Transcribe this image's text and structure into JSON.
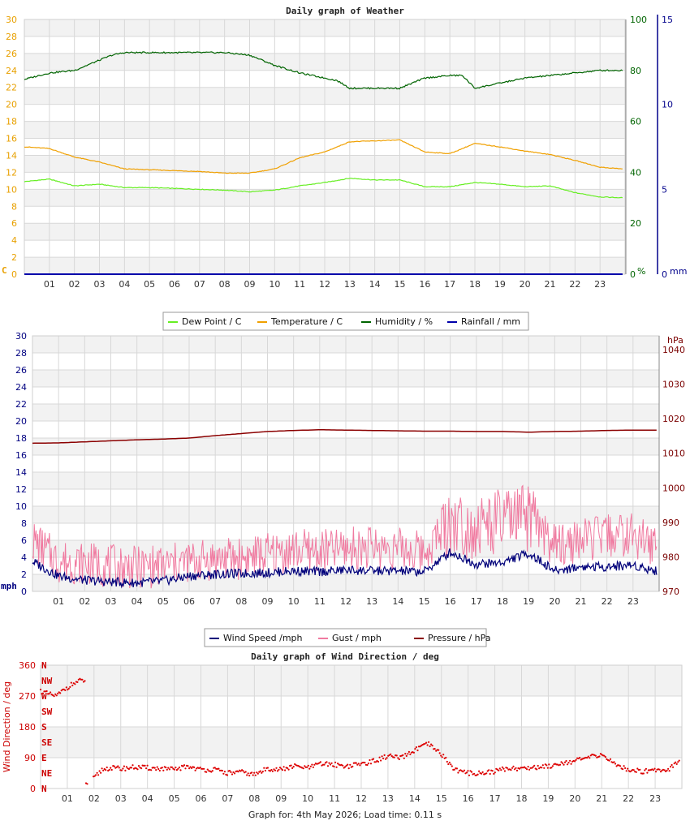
{
  "footer": {
    "text": "Graph for: 4th May 2026; Load time: 0.11 s"
  },
  "chart_data": [
    {
      "type": "line",
      "title": "Daily graph of Weather",
      "x_ticks": [
        "01",
        "02",
        "03",
        "04",
        "05",
        "06",
        "07",
        "08",
        "09",
        "10",
        "11",
        "12",
        "13",
        "14",
        "15",
        "16",
        "17",
        "18",
        "19",
        "20",
        "21",
        "22",
        "23"
      ],
      "left_axis": {
        "label": "C",
        "range": [
          0,
          30
        ],
        "ticks": [
          "0",
          "2",
          "4",
          "6",
          "8",
          "10",
          "12",
          "14",
          "16",
          "18",
          "20",
          "22",
          "24",
          "26",
          "28",
          "30"
        ],
        "color": "#e8a000"
      },
      "right_axis_1": {
        "label": "%",
        "range": [
          0,
          100
        ],
        "ticks": [
          "0",
          "20",
          "40",
          "60",
          "80",
          "100"
        ],
        "color": "#006400"
      },
      "right_axis_2": {
        "label": "mm",
        "range": [
          0,
          15
        ],
        "ticks": [
          "0",
          "5",
          "10",
          "15"
        ],
        "color": "#00008b"
      },
      "legend": [
        {
          "name": "Dew Point / C",
          "color": "#66ee22"
        },
        {
          "name": "Temperature / C",
          "color": "#f0a000"
        },
        {
          "name": "Humidity / %",
          "color": "#006400"
        },
        {
          "name": "Rainfall / mm",
          "color": "#0000aa"
        }
      ],
      "series": [
        {
          "name": "Dew Point / C",
          "axis": "left",
          "color": "#66ee22",
          "x": [
            0,
            1,
            2,
            3,
            4,
            5,
            6,
            7,
            8,
            9,
            10,
            11,
            12,
            13,
            14,
            15,
            16,
            17,
            18,
            19,
            20,
            21,
            22,
            23,
            23.9
          ],
          "y": [
            10.9,
            11.2,
            10.4,
            10.6,
            10.2,
            10.2,
            10.1,
            10.0,
            9.9,
            9.7,
            9.9,
            10.4,
            10.8,
            11.3,
            11.1,
            11.1,
            10.3,
            10.3,
            10.8,
            10.6,
            10.3,
            10.4,
            9.6,
            9.1,
            9.0
          ]
        },
        {
          "name": "Temperature / C",
          "axis": "left",
          "color": "#f0a000",
          "x": [
            0,
            1,
            2,
            3,
            4,
            5,
            6,
            7,
            8,
            9,
            10,
            11,
            12,
            13,
            14,
            15,
            16,
            17,
            18,
            19,
            20,
            21,
            22,
            23,
            23.9
          ],
          "y": [
            15.0,
            14.8,
            13.8,
            13.2,
            12.4,
            12.3,
            12.2,
            12.1,
            11.9,
            11.9,
            12.4,
            13.7,
            14.4,
            15.6,
            15.7,
            15.8,
            14.4,
            14.2,
            15.4,
            15.0,
            14.5,
            14.1,
            13.4,
            12.6,
            12.4
          ]
        },
        {
          "name": "Humidity / %",
          "axis": "right_1",
          "color": "#006400",
          "x": [
            0,
            1,
            2,
            3,
            3.5,
            4,
            5,
            6,
            7,
            8,
            9,
            10,
            11,
            12,
            12.5,
            13,
            14,
            15,
            16,
            17,
            17.5,
            18,
            19,
            20,
            21,
            22,
            23,
            23.9
          ],
          "y": [
            76.5,
            79,
            80,
            84,
            86,
            87,
            87,
            87,
            87,
            87,
            86,
            82,
            79,
            77,
            76,
            73,
            73,
            73,
            77,
            78,
            78,
            73,
            75,
            77,
            78,
            79,
            80,
            80
          ]
        },
        {
          "name": "Rainfall / mm",
          "axis": "right_2",
          "color": "#0000aa",
          "x": [
            0,
            23.9
          ],
          "y": [
            0,
            0
          ]
        }
      ]
    },
    {
      "type": "line",
      "title": "",
      "x_ticks": [
        "01",
        "02",
        "03",
        "04",
        "05",
        "06",
        "07",
        "08",
        "09",
        "10",
        "11",
        "12",
        "13",
        "14",
        "15",
        "16",
        "17",
        "18",
        "19",
        "20",
        "21",
        "22",
        "23"
      ],
      "left_axis": {
        "label": "mph",
        "range": [
          0,
          30
        ],
        "ticks": [
          "0",
          "2",
          "4",
          "6",
          "8",
          "10",
          "12",
          "14",
          "16",
          "18",
          "20",
          "22",
          "24",
          "26",
          "28",
          "30"
        ],
        "color": "#000080"
      },
      "right_axis": {
        "label": "hPa",
        "range": [
          970,
          1044
        ],
        "ticks": [
          "970",
          "980",
          "990",
          "1000",
          "1010",
          "1020",
          "1030",
          "1040"
        ],
        "color": "#7a0000"
      },
      "legend": [
        {
          "name": "Wind Speed /mph",
          "color": "#00007a"
        },
        {
          "name": "Gust / mph",
          "color": "#f07aa0"
        },
        {
          "name": "Pressure / hPa",
          "color": "#8b0000"
        }
      ],
      "series": [
        {
          "name": "Wind Speed /mph",
          "axis": "left",
          "color": "#00007a",
          "x": [
            0,
            1,
            2,
            3,
            4,
            5,
            6,
            7,
            8,
            9,
            10,
            11,
            12,
            13,
            14,
            15,
            16,
            17,
            18,
            19,
            20,
            21,
            22,
            23,
            23.9
          ],
          "y": [
            3.5,
            1.8,
            1.3,
            1.1,
            1.0,
            1.2,
            1.8,
            2.0,
            2.1,
            2.2,
            2.4,
            2.3,
            2.5,
            2.4,
            2.4,
            2.3,
            4.6,
            3.2,
            3.4,
            4.5,
            2.4,
            2.9,
            2.9,
            3.1,
            2.4
          ]
        },
        {
          "name": "Gust / mph",
          "axis": "left",
          "color": "#f07aa0",
          "x": [
            0,
            1,
            2,
            3,
            4,
            5,
            6,
            7,
            8,
            9,
            10,
            11,
            12,
            13,
            14,
            15,
            16,
            17,
            18,
            19,
            20,
            21,
            22,
            23,
            23.9
          ],
          "y": [
            6.0,
            3.5,
            3.3,
            3.0,
            2.8,
            3.0,
            3.5,
            3.8,
            3.9,
            4.3,
            4.8,
            4.7,
            5.0,
            5.2,
            5.0,
            4.6,
            8.3,
            7.5,
            8.2,
            8.6,
            5.3,
            6.0,
            6.5,
            6.6,
            5.2
          ]
        },
        {
          "name": "Pressure / hPa",
          "axis": "right",
          "color": "#8b0000",
          "x": [
            0,
            1,
            2,
            3,
            4,
            5,
            6,
            7,
            8,
            9,
            10,
            11,
            12,
            13,
            14,
            15,
            16,
            17,
            18,
            19,
            20,
            21,
            22,
            23,
            23.9
          ],
          "y": [
            1012.9,
            1013.0,
            1013.3,
            1013.6,
            1013.9,
            1014.1,
            1014.4,
            1015.1,
            1015.7,
            1016.3,
            1016.6,
            1016.8,
            1016.7,
            1016.6,
            1016.5,
            1016.4,
            1016.4,
            1016.3,
            1016.3,
            1016.1,
            1016.3,
            1016.4,
            1016.6,
            1016.7,
            1016.7
          ]
        }
      ]
    },
    {
      "type": "scatter",
      "title": "Daily graph of Wind Direction / deg",
      "x_ticks": [
        "01",
        "02",
        "03",
        "04",
        "05",
        "06",
        "07",
        "08",
        "09",
        "10",
        "11",
        "12",
        "13",
        "14",
        "15",
        "16",
        "17",
        "18",
        "19",
        "20",
        "21",
        "22",
        "23"
      ],
      "left_axis": {
        "label": "Wind Direction / deg",
        "range": [
          0,
          360
        ],
        "ticks": [
          "0",
          "90",
          "180",
          "270",
          "360"
        ],
        "color": "#cc0000"
      },
      "compass_labels": [
        "N",
        "NE",
        "E",
        "SE",
        "S",
        "SW",
        "W",
        "NW",
        "N"
      ],
      "series": [
        {
          "name": "Wind Direction",
          "color": "#dd0000",
          "x": [
            0,
            0.3,
            0.6,
            0.9,
            1.2,
            1.5,
            1.7,
            2.0,
            2.3,
            2.6,
            3.0,
            3.5,
            4.0,
            4.5,
            5.0,
            5.5,
            6.0,
            6.5,
            7.0,
            7.5,
            8.0,
            8.5,
            9.0,
            9.5,
            10.0,
            10.5,
            11.0,
            11.5,
            12.0,
            12.5,
            13.0,
            13.5,
            14.0,
            14.5,
            15.0,
            15.5,
            16.0,
            16.5,
            17.0,
            17.5,
            18.0,
            18.5,
            19.0,
            19.5,
            20.0,
            20.5,
            21.0,
            21.5,
            22.0,
            22.5,
            23.0,
            23.5,
            23.9
          ],
          "y": [
            285,
            275,
            270,
            290,
            305,
            315,
            10,
            30,
            55,
            60,
            58,
            62,
            60,
            58,
            55,
            65,
            55,
            55,
            45,
            48,
            40,
            58,
            55,
            65,
            60,
            72,
            70,
            65,
            72,
            80,
            95,
            88,
            112,
            130,
            100,
            55,
            45,
            45,
            50,
            60,
            58,
            62,
            65,
            75,
            80,
            90,
            100,
            70,
            55,
            50,
            55,
            55,
            85
          ]
        }
      ]
    }
  ]
}
